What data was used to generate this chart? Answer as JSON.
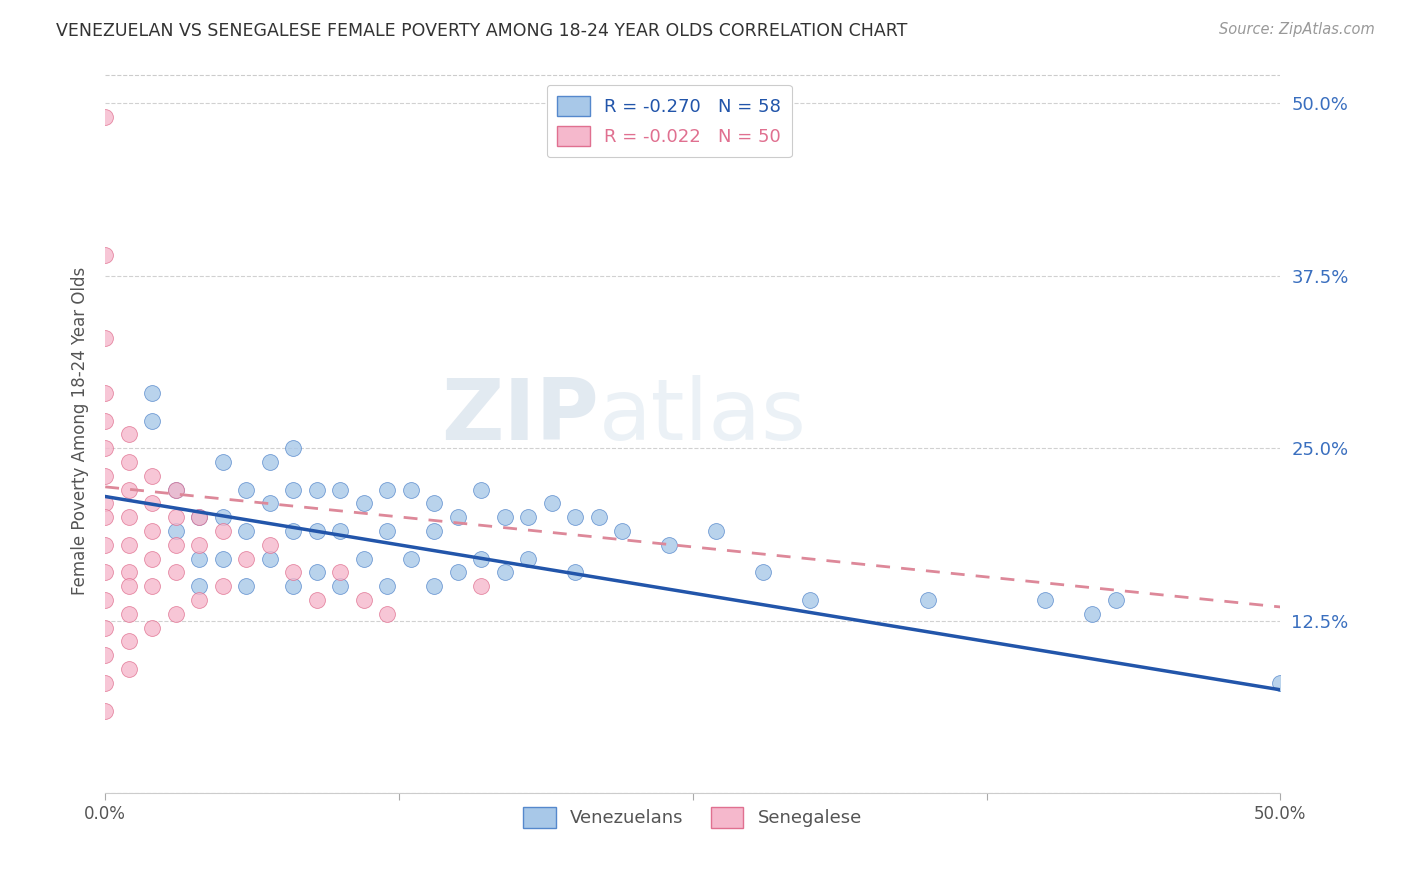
{
  "title": "VENEZUELAN VS SENEGALESE FEMALE POVERTY AMONG 18-24 YEAR OLDS CORRELATION CHART",
  "source": "Source: ZipAtlas.com",
  "ylabel": "Female Poverty Among 18-24 Year Olds",
  "xlim": [
    0.0,
    0.5
  ],
  "ylim": [
    0.0,
    0.525
  ],
  "r_venezuelan": -0.27,
  "n_venezuelan": 58,
  "r_senegalese": -0.022,
  "n_senegalese": 50,
  "legend_labels": [
    "Venezuelans",
    "Senegalese"
  ],
  "color_venezuelan": "#a8c8e8",
  "color_senegalese": "#f5b8cc",
  "color_edge_venezuelan": "#5588cc",
  "color_edge_senegalese": "#e07090",
  "color_line_venezuelan": "#2255aa",
  "color_line_senegalese": "#dd8899",
  "watermark_zip": "ZIP",
  "watermark_atlas": "atlas",
  "venezuelan_x": [
    0.02,
    0.02,
    0.03,
    0.03,
    0.04,
    0.04,
    0.04,
    0.05,
    0.05,
    0.05,
    0.06,
    0.06,
    0.06,
    0.07,
    0.07,
    0.07,
    0.08,
    0.08,
    0.08,
    0.08,
    0.09,
    0.09,
    0.09,
    0.1,
    0.1,
    0.1,
    0.11,
    0.11,
    0.12,
    0.12,
    0.12,
    0.13,
    0.13,
    0.14,
    0.14,
    0.14,
    0.15,
    0.15,
    0.16,
    0.16,
    0.17,
    0.17,
    0.18,
    0.18,
    0.19,
    0.2,
    0.2,
    0.21,
    0.22,
    0.24,
    0.26,
    0.28,
    0.3,
    0.35,
    0.4,
    0.42,
    0.43,
    0.5
  ],
  "venezuelan_y": [
    0.29,
    0.27,
    0.22,
    0.19,
    0.2,
    0.17,
    0.15,
    0.24,
    0.2,
    0.17,
    0.22,
    0.19,
    0.15,
    0.24,
    0.21,
    0.17,
    0.25,
    0.22,
    0.19,
    0.15,
    0.22,
    0.19,
    0.16,
    0.22,
    0.19,
    0.15,
    0.21,
    0.17,
    0.22,
    0.19,
    0.15,
    0.22,
    0.17,
    0.21,
    0.19,
    0.15,
    0.2,
    0.16,
    0.22,
    0.17,
    0.2,
    0.16,
    0.2,
    0.17,
    0.21,
    0.2,
    0.16,
    0.2,
    0.19,
    0.18,
    0.19,
    0.16,
    0.14,
    0.14,
    0.14,
    0.13,
    0.14,
    0.08
  ],
  "senegalese_x": [
    0.0,
    0.0,
    0.0,
    0.0,
    0.0,
    0.0,
    0.0,
    0.0,
    0.0,
    0.0,
    0.0,
    0.0,
    0.0,
    0.0,
    0.0,
    0.0,
    0.01,
    0.01,
    0.01,
    0.01,
    0.01,
    0.01,
    0.01,
    0.01,
    0.01,
    0.01,
    0.02,
    0.02,
    0.02,
    0.02,
    0.02,
    0.02,
    0.03,
    0.03,
    0.03,
    0.03,
    0.03,
    0.04,
    0.04,
    0.04,
    0.05,
    0.05,
    0.06,
    0.07,
    0.08,
    0.09,
    0.1,
    0.11,
    0.12,
    0.16
  ],
  "senegalese_y": [
    0.49,
    0.39,
    0.33,
    0.29,
    0.27,
    0.25,
    0.23,
    0.21,
    0.2,
    0.18,
    0.16,
    0.14,
    0.12,
    0.1,
    0.08,
    0.06,
    0.26,
    0.24,
    0.22,
    0.2,
    0.18,
    0.16,
    0.15,
    0.13,
    0.11,
    0.09,
    0.23,
    0.21,
    0.19,
    0.17,
    0.15,
    0.12,
    0.22,
    0.2,
    0.18,
    0.16,
    0.13,
    0.2,
    0.18,
    0.14,
    0.19,
    0.15,
    0.17,
    0.18,
    0.16,
    0.14,
    0.16,
    0.14,
    0.13,
    0.15
  ]
}
